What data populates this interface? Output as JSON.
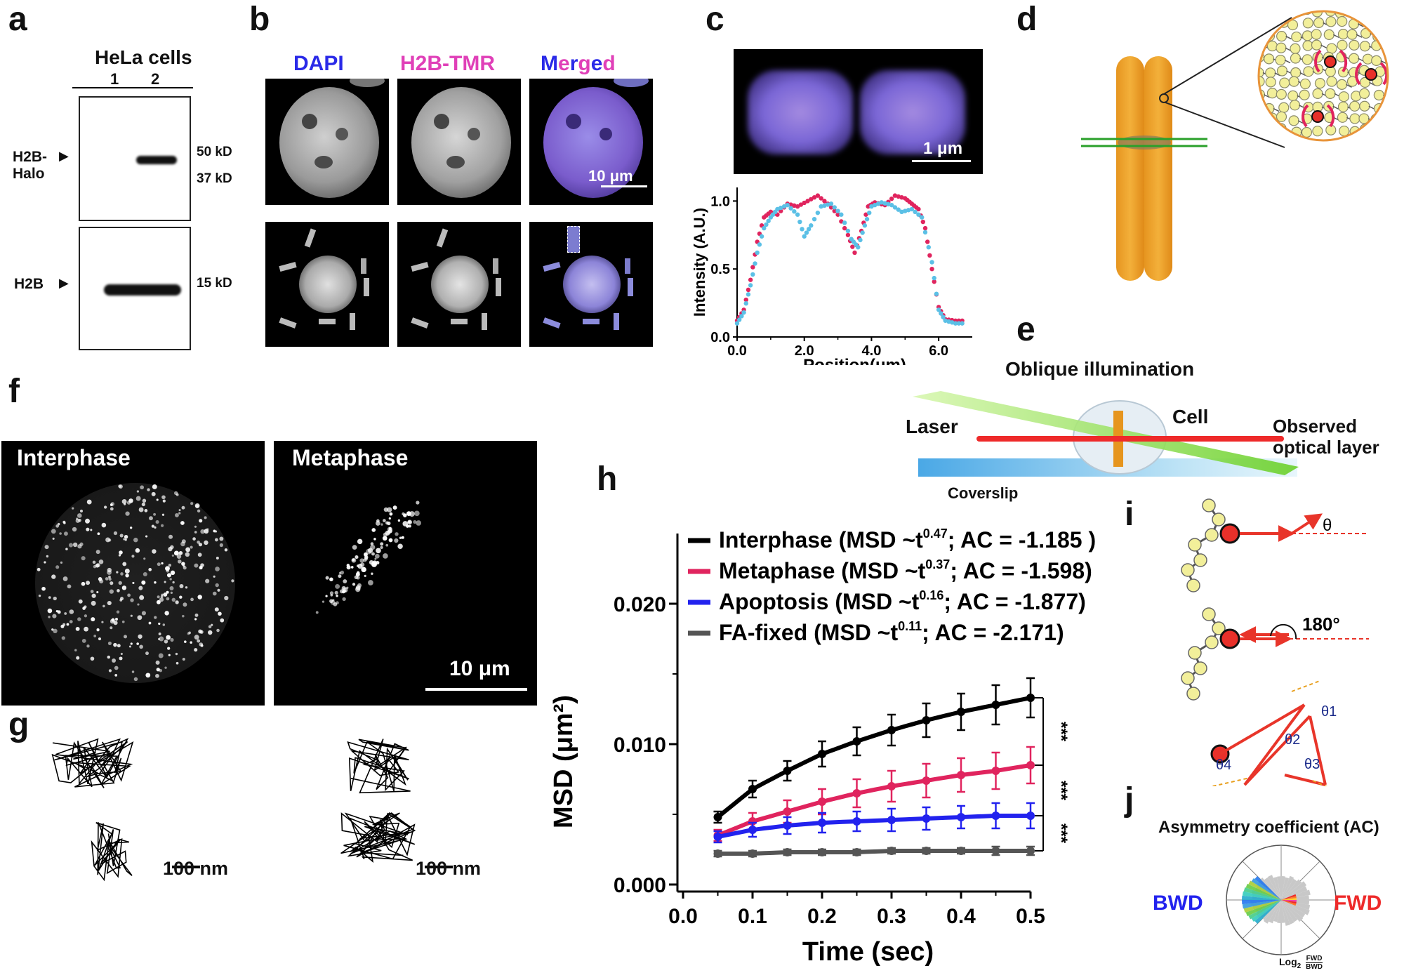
{
  "panels": {
    "a": "a",
    "b": "b",
    "c": "c",
    "d": "d",
    "e": "e",
    "f": "f",
    "g": "g",
    "h": "h",
    "i": "i",
    "j": "j"
  },
  "panel_a": {
    "title": "HeLa cells",
    "lanes": [
      "1",
      "2"
    ],
    "band_label_top": "H2B-\nHalo",
    "band_label_bottom": "H2B",
    "kd_50": "50 kD",
    "kd_37": "37 kD",
    "kd_15": "15 kD"
  },
  "panel_b": {
    "col1": "DAPI",
    "col2": "H2B-TMR",
    "col3_letters": [
      "M",
      "e",
      "r",
      "g",
      "e",
      "d"
    ],
    "scale": "10 μm"
  },
  "panel_c": {
    "scale": "1 μm",
    "chart_data": {
      "type": "scatter",
      "xlabel": "Position(μm)",
      "ylabel": "Intensity (A.U.)",
      "xlim": [
        0,
        7
      ],
      "ylim": [
        0,
        1.1
      ],
      "xticks": [
        "0.0",
        "2.0",
        "4.0",
        "6.0"
      ],
      "yticks": [
        "0.0",
        "0.5",
        "1.0"
      ],
      "series": [
        {
          "color": "#e0245e",
          "x": [
            0.0,
            0.2,
            0.4,
            0.6,
            0.8,
            1.0,
            1.2,
            1.5,
            1.8,
            2.1,
            2.4,
            2.7,
            3.0,
            3.3,
            3.5,
            3.7,
            3.9,
            4.1,
            4.4,
            4.7,
            5.0,
            5.2,
            5.4,
            5.6,
            5.8,
            6.0,
            6.2,
            6.5,
            6.8
          ],
          "y": [
            0.12,
            0.2,
            0.42,
            0.7,
            0.88,
            0.92,
            0.9,
            0.98,
            0.96,
            1.0,
            1.04,
            0.98,
            0.9,
            0.75,
            0.62,
            0.78,
            0.96,
            0.99,
            0.97,
            1.04,
            1.02,
            0.98,
            0.94,
            0.8,
            0.5,
            0.22,
            0.13,
            0.12,
            0.12
          ]
        },
        {
          "color": "#5bc0e6",
          "x": [
            0.0,
            0.2,
            0.4,
            0.6,
            0.8,
            1.0,
            1.2,
            1.5,
            1.8,
            2.0,
            2.2,
            2.5,
            2.8,
            3.1,
            3.4,
            3.6,
            3.8,
            4.0,
            4.3,
            4.6,
            4.9,
            5.2,
            5.5,
            5.8,
            6.0,
            6.2,
            6.5,
            6.8
          ],
          "y": [
            0.1,
            0.18,
            0.38,
            0.62,
            0.8,
            0.88,
            0.94,
            0.97,
            0.9,
            0.74,
            0.82,
            0.96,
            0.98,
            0.9,
            0.72,
            0.66,
            0.82,
            0.96,
            0.99,
            0.97,
            0.92,
            0.94,
            0.88,
            0.55,
            0.2,
            0.12,
            0.1,
            0.1
          ]
        }
      ]
    }
  },
  "panel_e": {
    "title": "Oblique illumination",
    "laser": "Laser",
    "cell": "Cell",
    "observed": "Observed\noptical layer",
    "coverslip": "Coverslip"
  },
  "panel_f": {
    "left": "Interphase",
    "right": "Metaphase",
    "scale": "10 μm"
  },
  "panel_g": {
    "scale1": "100 nm",
    "scale2": "100 nm"
  },
  "panel_h": {
    "chart_data": {
      "type": "line",
      "xlabel": "Time (sec)",
      "ylabel": "MSD (μm²)",
      "xlim": [
        0,
        0.5
      ],
      "ylim": [
        0,
        0.025
      ],
      "xticks": [
        "0.0",
        "0.1",
        "0.2",
        "0.3",
        "0.4",
        "0.5"
      ],
      "yticks": [
        "0.000",
        "0.010",
        "0.020"
      ],
      "x": [
        0.05,
        0.1,
        0.15,
        0.2,
        0.25,
        0.3,
        0.35,
        0.4,
        0.45,
        0.5
      ],
      "series": [
        {
          "name": "Interphase (MSD ~t^0.47; AC = -1.185 )",
          "color": "#000000",
          "values": [
            0.0048,
            0.0068,
            0.0081,
            0.0093,
            0.0102,
            0.011,
            0.0117,
            0.0123,
            0.0128,
            0.0133
          ],
          "err": [
            0.0004,
            0.0006,
            0.0007,
            0.0009,
            0.001,
            0.0011,
            0.0012,
            0.0013,
            0.0014,
            0.0014
          ]
        },
        {
          "name": "Metaphase (MSD ~t^0.37; AC = -1.598)",
          "color": "#e0245e",
          "values": [
            0.0035,
            0.0045,
            0.0052,
            0.0059,
            0.0065,
            0.007,
            0.0074,
            0.0078,
            0.0081,
            0.0085
          ],
          "err": [
            0.0004,
            0.0006,
            0.0008,
            0.0009,
            0.001,
            0.0011,
            0.0012,
            0.0012,
            0.0013,
            0.0013
          ]
        },
        {
          "name": "Apoptosis (MSD ~t^0.16; AC = -1.877)",
          "color": "#2222ee",
          "values": [
            0.0034,
            0.0039,
            0.0042,
            0.0044,
            0.0045,
            0.0046,
            0.0047,
            0.0048,
            0.0049,
            0.0049
          ],
          "err": [
            0.0004,
            0.0005,
            0.0006,
            0.0007,
            0.0007,
            0.0008,
            0.0008,
            0.0008,
            0.0009,
            0.0009
          ]
        },
        {
          "name": "FA-fixed (MSD ~t^0.11; AC = -2.171)",
          "color": "#555555",
          "values": [
            0.0022,
            0.0022,
            0.0023,
            0.0023,
            0.0023,
            0.0024,
            0.0024,
            0.0024,
            0.0024,
            0.0024
          ],
          "err": [
            0.0002,
            0.0002,
            0.0002,
            0.0002,
            0.0002,
            0.0002,
            0.0002,
            0.0002,
            0.0003,
            0.0003
          ]
        }
      ],
      "legend": [
        {
          "lead": "Interphase (MSD ~t",
          "sup": "0.47",
          "tail": "; AC = -1.185 )"
        },
        {
          "lead": "Metaphase (MSD ~t",
          "sup": "0.37",
          "tail": "; AC = -1.598)"
        },
        {
          "lead": "Apoptosis (MSD ~t",
          "sup": "0.16",
          "tail": "; AC = -1.877)"
        },
        {
          "lead": "FA-fixed (MSD ~t",
          "sup": "0.11",
          "tail": "; AC = -2.171)"
        }
      ],
      "significance": [
        "***",
        "***",
        "***"
      ]
    }
  },
  "panel_i": {
    "theta": "θ",
    "deg180": "180°",
    "theta1": "θ1",
    "theta2": "θ2",
    "theta3": "θ3",
    "theta4": "θ4"
  },
  "panel_j": {
    "title": "Asymmetry coefficient (AC)",
    "bwd": "BWD",
    "fwd": "FWD",
    "log_label": "Log",
    "log_sub": "2",
    "frac_num": "FWD",
    "frac_den": "BWD"
  }
}
